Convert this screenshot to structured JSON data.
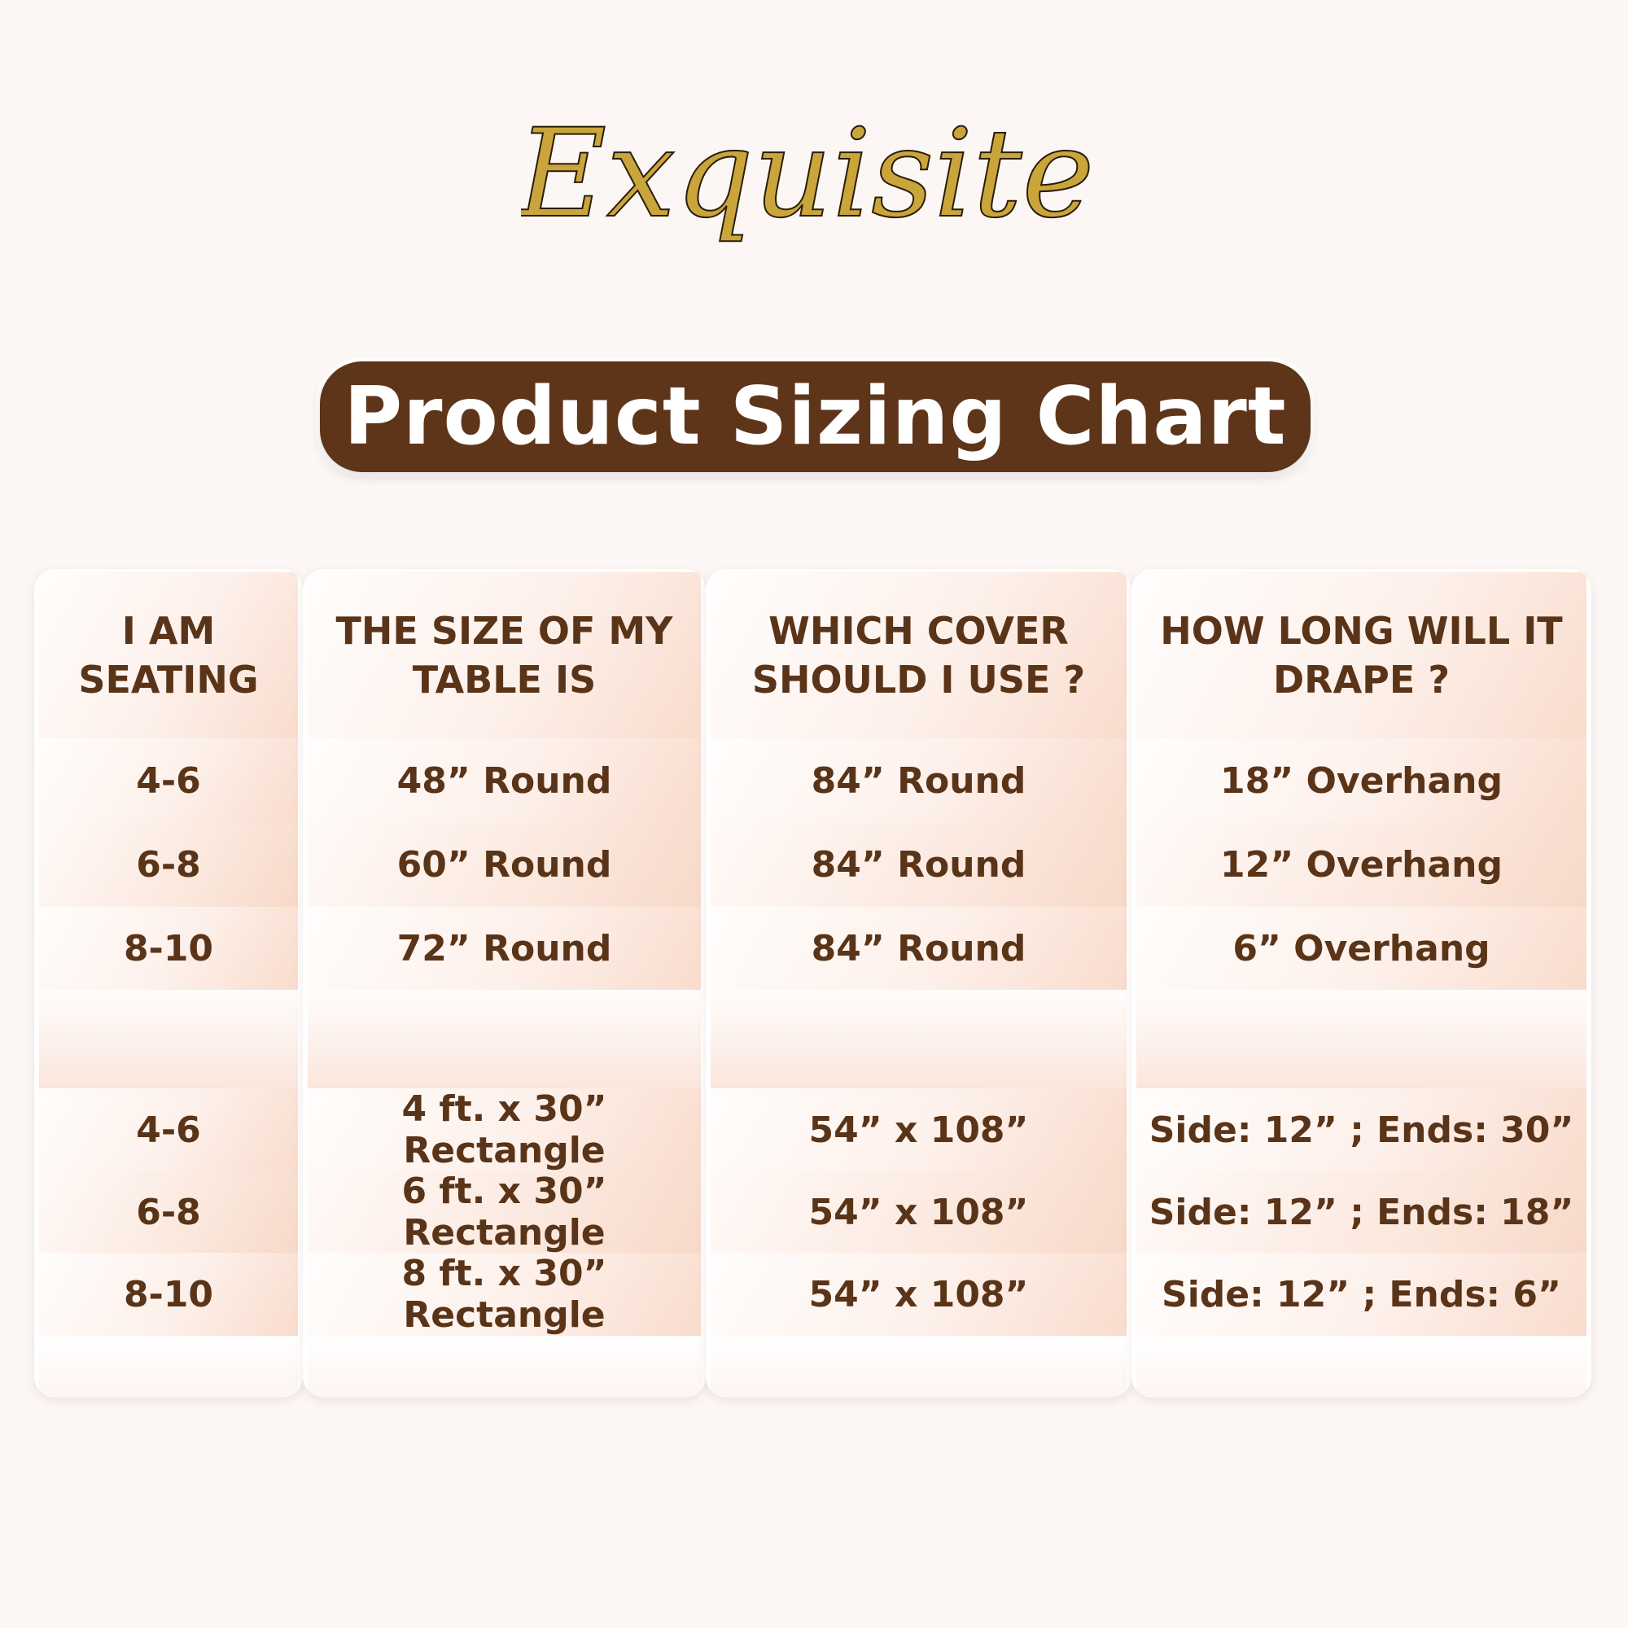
{
  "logo": {
    "text": "Exquisite",
    "color": "#c9a53c"
  },
  "banner": {
    "title": "Product Sizing Chart",
    "color": "#5e3519"
  },
  "table": {
    "headers": [
      "I AM SEATING",
      "THE SIZE OF MY TABLE IS",
      "WHICH COVER SHOULD I USE ?",
      "HOW LONG WILL IT DRAPE ?"
    ],
    "round_rows": [
      [
        "4-6",
        "48” Round",
        "84” Round",
        "18” Overhang"
      ],
      [
        "6-8",
        "60” Round",
        "84” Round",
        "12” Overhang"
      ],
      [
        "8-10",
        "72” Round",
        "84” Round",
        "6” Overhang"
      ]
    ],
    "rect_rows": [
      [
        "4-6",
        "4 ft. x 30” Rectangle",
        "54” x 108”",
        "Side: 12” ; Ends: 30”"
      ],
      [
        "6-8",
        "6 ft. x 30” Rectangle",
        "54” x 108”",
        "Side: 12” ; Ends: 18”"
      ],
      [
        "8-10",
        "8 ft. x 30” Rectangle",
        "54” x 108”",
        "Side: 12” ; Ends: 6”"
      ]
    ],
    "text_color": "#5a3418"
  }
}
